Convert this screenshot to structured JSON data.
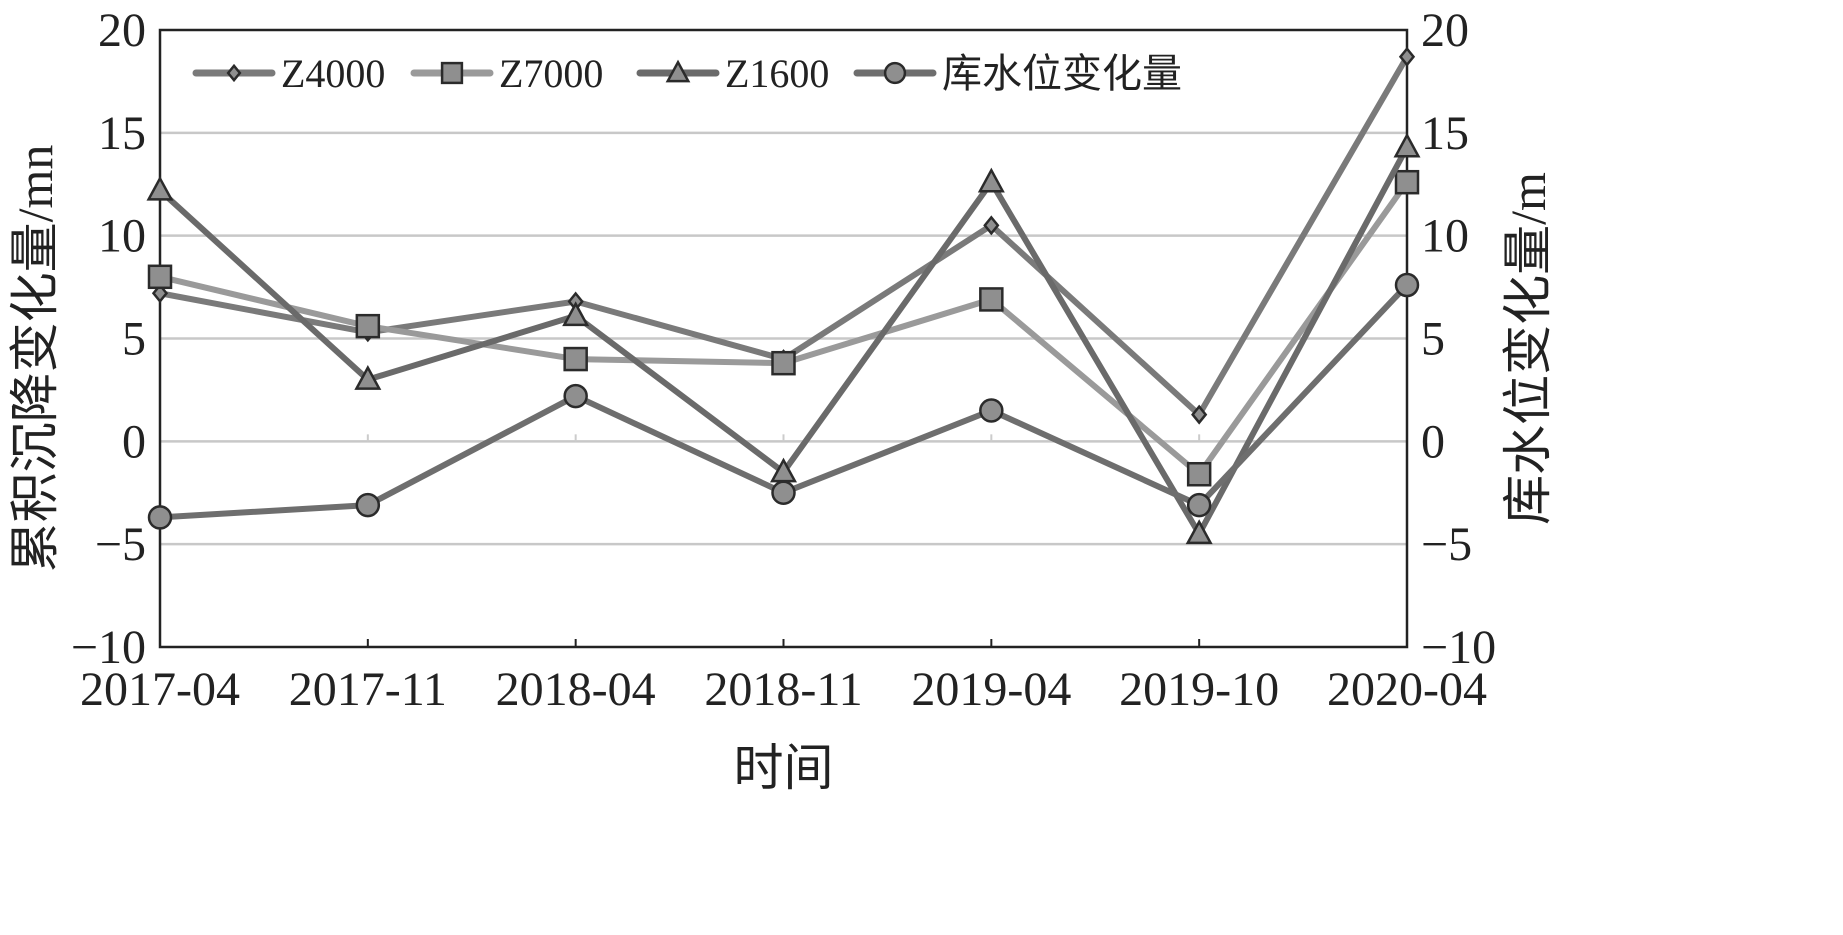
{
  "chart_data": {
    "type": "line",
    "categories": [
      "2017-04",
      "2017-11",
      "2018-04",
      "2018-11",
      "2019-04",
      "2019-10",
      "2020-04"
    ],
    "xlabel": "时间",
    "ylabel_left": "累积沉降变化量/mn",
    "ylabel_right": "库水位变化量/m",
    "ylim": [
      -10,
      20
    ],
    "yticks": [
      20,
      15,
      10,
      5,
      0,
      -5,
      -10
    ],
    "yticks_right": [
      20,
      15,
      10,
      5,
      0,
      -5,
      -10
    ],
    "grid": true,
    "legend_position": "top",
    "series": [
      {
        "name": "Z4000",
        "marker": "diamond",
        "color": "#7a7a7a",
        "values": [
          7.2,
          5.3,
          6.8,
          4.0,
          10.5,
          1.3,
          18.7
        ]
      },
      {
        "name": "Z7000",
        "marker": "square",
        "color": "#9a9a9a",
        "values": [
          8.0,
          5.6,
          4.0,
          3.8,
          6.9,
          -1.6,
          12.6
        ]
      },
      {
        "name": "Z1600",
        "marker": "triangle",
        "color": "#6a6a6a",
        "values": [
          12.2,
          3.0,
          6.1,
          -1.5,
          12.6,
          -4.5,
          14.3
        ]
      },
      {
        "name": "库水位变化量",
        "marker": "circle",
        "color": "#6e6e6e",
        "values": [
          -3.7,
          -3.1,
          2.2,
          -2.5,
          1.5,
          -3.1,
          7.6
        ]
      }
    ]
  }
}
